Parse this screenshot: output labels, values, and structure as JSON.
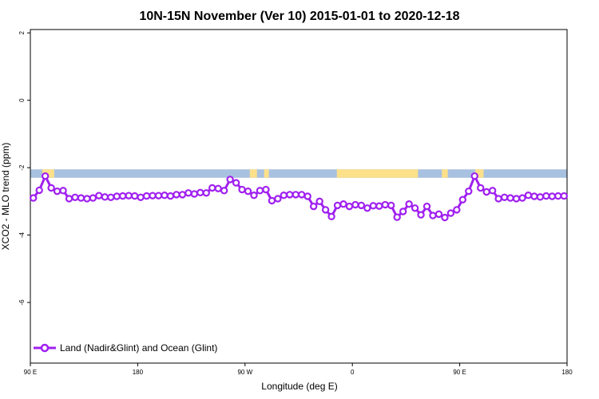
{
  "chart_data": {
    "type": "line",
    "title": "10N-15N November (Ver 10)   2015-01-01 to 2020-12-18",
    "xlabel": "Longitude (deg E)",
    "ylabel": "XCO2 - MLO trend (ppm)",
    "xlim": [
      0,
      450
    ],
    "ylim": [
      -7.8,
      2.1
    ],
    "x_ticks": [
      {
        "value": 0,
        "label": "90 E"
      },
      {
        "value": 90,
        "label": "180"
      },
      {
        "value": 180,
        "label": "90 W"
      },
      {
        "value": 270,
        "label": "0"
      },
      {
        "value": 360,
        "label": "90 E"
      },
      {
        "value": 450,
        "label": "180"
      }
    ],
    "y_ticks": [
      {
        "value": 2,
        "label": "2"
      },
      {
        "value": 0,
        "label": "0"
      },
      {
        "value": -2,
        "label": "-2"
      },
      {
        "value": -4,
        "label": "-4"
      },
      {
        "value": -6,
        "label": "-6"
      }
    ],
    "grid": false,
    "legend_position": "bottom-left",
    "land_mask_band": {
      "y_range": [
        -2.3,
        -2.05
      ],
      "ocean_color": "#a9c1e0",
      "land_color": "#fce08a",
      "land_segments": [
        [
          10,
          20
        ],
        [
          184,
          190
        ],
        [
          196,
          200
        ],
        [
          257,
          325
        ],
        [
          345,
          350
        ],
        [
          373,
          380
        ]
      ]
    },
    "series": [
      {
        "name": "Land (Nadir&Glint) and Ocean (Glint)",
        "color": "#a020f0",
        "x": [
          2.5,
          7.5,
          12.5,
          17.5,
          22.5,
          27.5,
          32.5,
          37.5,
          42.5,
          47.5,
          52.5,
          57.5,
          62.5,
          67.5,
          72.5,
          77.5,
          82.5,
          87.5,
          92.5,
          97.5,
          102.5,
          107.5,
          112.5,
          117.5,
          122.5,
          127.5,
          132.5,
          137.5,
          142.5,
          147.5,
          152.5,
          157.5,
          162.5,
          167.5,
          172.5,
          177.5,
          182.5,
          187.5,
          192.5,
          197.5,
          202.5,
          207.5,
          212.5,
          217.5,
          222.5,
          227.5,
          232.5,
          237.5,
          242.5,
          247.5,
          252.5,
          257.5,
          262.5,
          267.5,
          272.5,
          277.5,
          282.5,
          287.5,
          292.5,
          297.5,
          302.5,
          307.5,
          312.5,
          317.5,
          322.5,
          327.5,
          332.5,
          337.5,
          342.5,
          347.5,
          352.5,
          357.5,
          362.5,
          367.5,
          372.5,
          377.5,
          382.5,
          387.5,
          392.5,
          397.5,
          402.5,
          407.5,
          412.5,
          417.5,
          422.5,
          427.5,
          432.5,
          437.5,
          442.5,
          447.5
        ],
        "values": [
          -2.9,
          -2.67,
          -2.25,
          -2.6,
          -2.7,
          -2.68,
          -2.92,
          -2.88,
          -2.9,
          -2.92,
          -2.9,
          -2.83,
          -2.87,
          -2.88,
          -2.85,
          -2.84,
          -2.83,
          -2.84,
          -2.88,
          -2.84,
          -2.83,
          -2.83,
          -2.82,
          -2.84,
          -2.8,
          -2.8,
          -2.75,
          -2.78,
          -2.74,
          -2.75,
          -2.6,
          -2.62,
          -2.68,
          -2.35,
          -2.45,
          -2.65,
          -2.7,
          -2.82,
          -2.68,
          -2.65,
          -2.98,
          -2.92,
          -2.82,
          -2.8,
          -2.8,
          -2.8,
          -2.85,
          -3.15,
          -3.0,
          -3.25,
          -3.45,
          -3.12,
          -3.08,
          -3.15,
          -3.1,
          -3.12,
          -3.2,
          -3.13,
          -3.14,
          -3.1,
          -3.12,
          -3.47,
          -3.3,
          -3.08,
          -3.2,
          -3.4,
          -3.15,
          -3.42,
          -3.38,
          -3.48,
          -3.35,
          -3.25,
          -2.95,
          -2.7,
          -2.25,
          -2.6,
          -2.72,
          -2.68,
          -2.92,
          -2.88,
          -2.9,
          -2.92,
          -2.9,
          -2.82,
          -2.85,
          -2.87,
          -2.84,
          -2.85,
          -2.84,
          -2.84
        ]
      }
    ]
  }
}
